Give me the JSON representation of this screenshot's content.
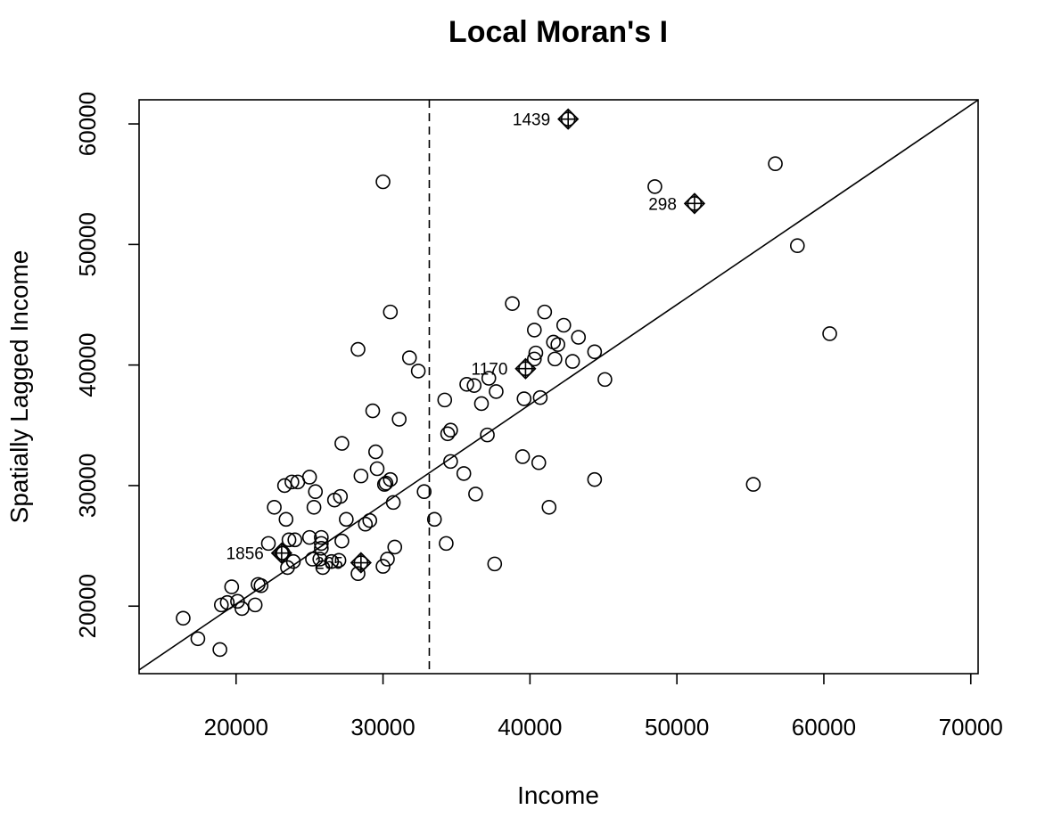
{
  "chart_data": {
    "type": "scatter",
    "title": "Local Moran's I",
    "xlabel": "Income",
    "ylabel": "Spatially Lagged Income",
    "xlim": [
      13400,
      70500
    ],
    "ylim": [
      14400,
      62000
    ],
    "xticks": [
      20000,
      30000,
      40000,
      50000,
      60000,
      70000
    ],
    "yticks": [
      20000,
      30000,
      40000,
      50000,
      60000
    ],
    "mean_x": 33150,
    "regression_line": {
      "intercept": 3610,
      "slope": 0.828
    },
    "points": [
      [
        16400,
        19000
      ],
      [
        17400,
        17300
      ],
      [
        18900,
        16400
      ],
      [
        19000,
        20100
      ],
      [
        19400,
        20300
      ],
      [
        19700,
        21600
      ],
      [
        20100,
        20400
      ],
      [
        20400,
        19800
      ],
      [
        21300,
        20100
      ],
      [
        21500,
        21800
      ],
      [
        21700,
        21700
      ],
      [
        22200,
        25200
      ],
      [
        22600,
        28200
      ],
      [
        23200,
        24400
      ],
      [
        23300,
        30000
      ],
      [
        23400,
        27200
      ],
      [
        23500,
        23200
      ],
      [
        23600,
        25500
      ],
      [
        23800,
        30300
      ],
      [
        23900,
        23700
      ],
      [
        24200,
        30300
      ],
      [
        24000,
        25500
      ],
      [
        25000,
        25700
      ],
      [
        25000,
        30700
      ],
      [
        25200,
        23900
      ],
      [
        25300,
        28200
      ],
      [
        25400,
        29500
      ],
      [
        25700,
        23900
      ],
      [
        25800,
        25700
      ],
      [
        25800,
        25200
      ],
      [
        25800,
        24800
      ],
      [
        25900,
        23200
      ],
      [
        26500,
        23700
      ],
      [
        26700,
        28800
      ],
      [
        27000,
        23800
      ],
      [
        27100,
        29100
      ],
      [
        27200,
        33500
      ],
      [
        27200,
        25400
      ],
      [
        27500,
        27200
      ],
      [
        28300,
        41300
      ],
      [
        28300,
        22700
      ],
      [
        28500,
        30800
      ],
      [
        28800,
        26800
      ],
      [
        29100,
        27100
      ],
      [
        29300,
        36200
      ],
      [
        29500,
        32800
      ],
      [
        29600,
        31400
      ],
      [
        30000,
        55200
      ],
      [
        30000,
        23300
      ],
      [
        30100,
        30100
      ],
      [
        30200,
        30200
      ],
      [
        30300,
        23900
      ],
      [
        30500,
        30500
      ],
      [
        30500,
        44400
      ],
      [
        30700,
        28600
      ],
      [
        30800,
        24900
      ],
      [
        31100,
        35500
      ],
      [
        31800,
        40600
      ],
      [
        32400,
        39500
      ],
      [
        32800,
        29500
      ],
      [
        33500,
        27200
      ],
      [
        34200,
        37100
      ],
      [
        34300,
        25200
      ],
      [
        34400,
        34300
      ],
      [
        34600,
        34600
      ],
      [
        34600,
        32000
      ],
      [
        35500,
        31000
      ],
      [
        35700,
        38400
      ],
      [
        36200,
        38300
      ],
      [
        36300,
        29300
      ],
      [
        36700,
        36800
      ],
      [
        37100,
        34200
      ],
      [
        37200,
        38900
      ],
      [
        37600,
        23500
      ],
      [
        37700,
        37800
      ],
      [
        38800,
        45100
      ],
      [
        39500,
        32400
      ],
      [
        39600,
        37200
      ],
      [
        40300,
        42900
      ],
      [
        40300,
        40500
      ],
      [
        40400,
        41000
      ],
      [
        40600,
        31900
      ],
      [
        40700,
        37300
      ],
      [
        41000,
        44400
      ],
      [
        41300,
        28200
      ],
      [
        41600,
        41900
      ],
      [
        41700,
        40500
      ],
      [
        41900,
        41700
      ],
      [
        42300,
        43300
      ],
      [
        42900,
        40300
      ],
      [
        43300,
        42300
      ],
      [
        44400,
        41100
      ],
      [
        44400,
        30500
      ],
      [
        45100,
        38800
      ],
      [
        48500,
        54800
      ],
      [
        55200,
        30100
      ],
      [
        56700,
        56700
      ],
      [
        58200,
        49900
      ],
      [
        60400,
        42600
      ]
    ],
    "influential_points": [
      {
        "label": "1439",
        "x": 42600,
        "y": 60400
      },
      {
        "label": "298",
        "x": 51200,
        "y": 53400
      },
      {
        "label": "1170",
        "x": 39700,
        "y": 39700
      },
      {
        "label": "1856",
        "x": 23100,
        "y": 24400
      },
      {
        "label": "265",
        "x": 28500,
        "y": 23600
      }
    ]
  }
}
